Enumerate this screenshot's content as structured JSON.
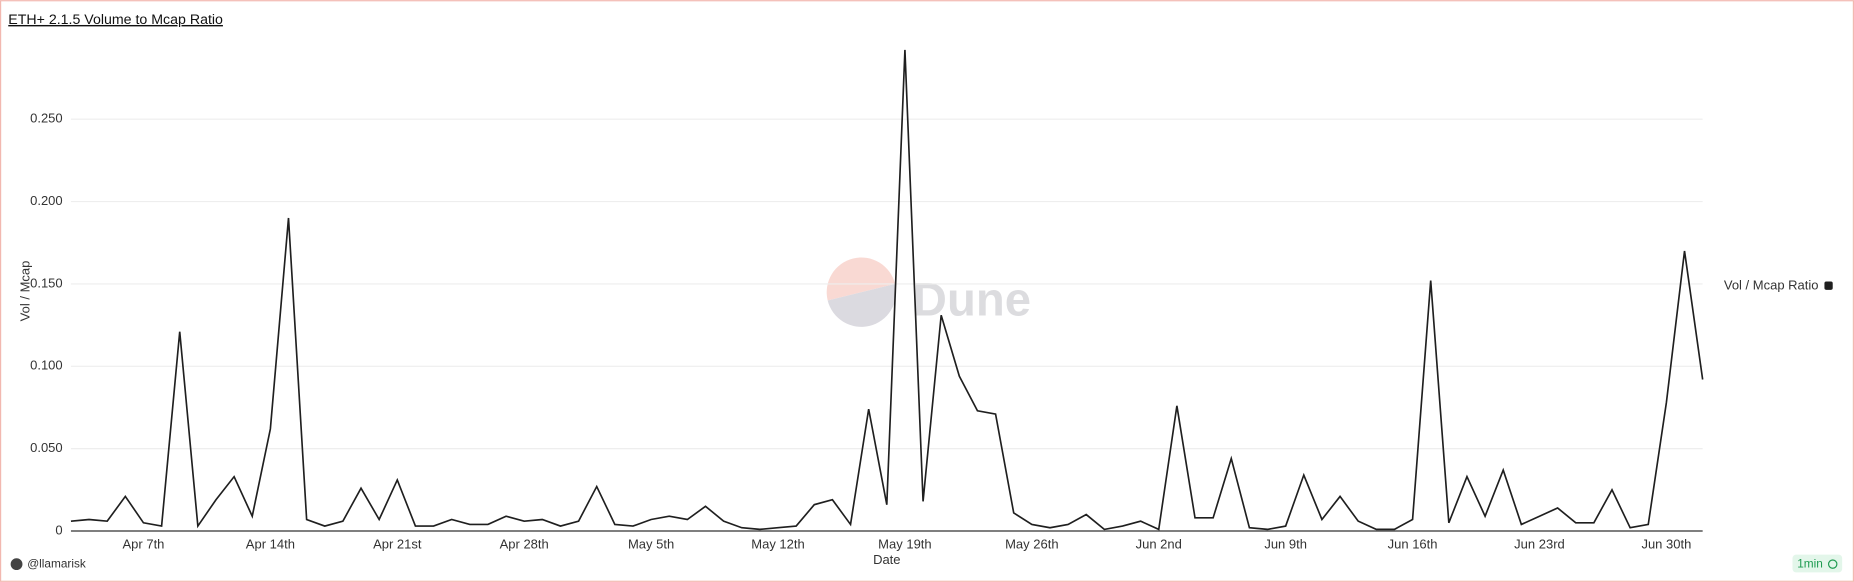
{
  "chart_data": {
    "type": "line",
    "title": "ETH+ 2.1.5 Volume to Mcap Ratio",
    "x_label": "Date",
    "y_label": "Vol / Mcap",
    "categories": [
      null,
      null,
      null,
      null,
      "Apr 7th",
      null,
      null,
      null,
      null,
      null,
      null,
      "Apr 14th",
      null,
      null,
      null,
      null,
      null,
      null,
      "Apr 21st",
      null,
      null,
      null,
      null,
      null,
      null,
      "Apr 28th",
      null,
      null,
      null,
      null,
      null,
      null,
      "May 5th",
      null,
      null,
      null,
      null,
      null,
      null,
      "May 12th",
      null,
      null,
      null,
      null,
      null,
      null,
      "May 19th",
      null,
      null,
      null,
      null,
      null,
      null,
      "May 26th",
      null,
      null,
      null,
      null,
      null,
      null,
      "Jun 2nd",
      null,
      null,
      null,
      null,
      null,
      null,
      "Jun 9th",
      null,
      null,
      null,
      null,
      null,
      null,
      "Jun 16th",
      null,
      null,
      null,
      null,
      null,
      null,
      "Jun 23rd",
      null,
      null,
      null,
      null,
      null,
      null,
      "Jun 30th",
      null,
      null
    ],
    "series": [
      {
        "name": "Vol / Mcap Ratio",
        "color": "#1f1f1f",
        "values": [
          0.006,
          0.007,
          0.006,
          0.021,
          0.005,
          0.003,
          0.121,
          0.003,
          0.019,
          0.033,
          0.009,
          0.062,
          0.19,
          0.007,
          0.003,
          0.006,
          0.026,
          0.007,
          0.031,
          0.003,
          0.003,
          0.007,
          0.004,
          0.004,
          0.009,
          0.006,
          0.007,
          0.003,
          0.006,
          0.027,
          0.004,
          0.003,
          0.007,
          0.009,
          0.007,
          0.015,
          0.006,
          0.002,
          0.001,
          0.002,
          0.003,
          0.016,
          0.019,
          0.004,
          0.074,
          0.016,
          0.292,
          0.018,
          0.131,
          0.094,
          0.073,
          0.071,
          0.011,
          0.004,
          0.002,
          0.004,
          0.01,
          0.001,
          0.003,
          0.006,
          0.001,
          0.076,
          0.008,
          0.008,
          0.044,
          0.002,
          0.001,
          0.003,
          0.034,
          0.007,
          0.021,
          0.006,
          0.001,
          0.001,
          0.007,
          0.152,
          0.005,
          0.033,
          0.009,
          0.037,
          0.004,
          0.009,
          0.014,
          0.005,
          0.005,
          0.025,
          0.002,
          0.004,
          0.078,
          0.17,
          0.092
        ]
      }
    ],
    "ylim": [
      0,
      0.3
    ],
    "yticks": [
      0,
      {
        "value": 0.05,
        "label": "0.050"
      },
      {
        "value": 0.1,
        "label": "0.100"
      },
      {
        "value": 0.15,
        "label": "0.150"
      },
      {
        "value": 0.2,
        "label": "0.200"
      },
      {
        "value": 0.25,
        "label": "0.250"
      }
    ],
    "grid": true,
    "legend": "right",
    "watermark": "Dune",
    "author": "@llamarisk",
    "refresh": "1min"
  }
}
